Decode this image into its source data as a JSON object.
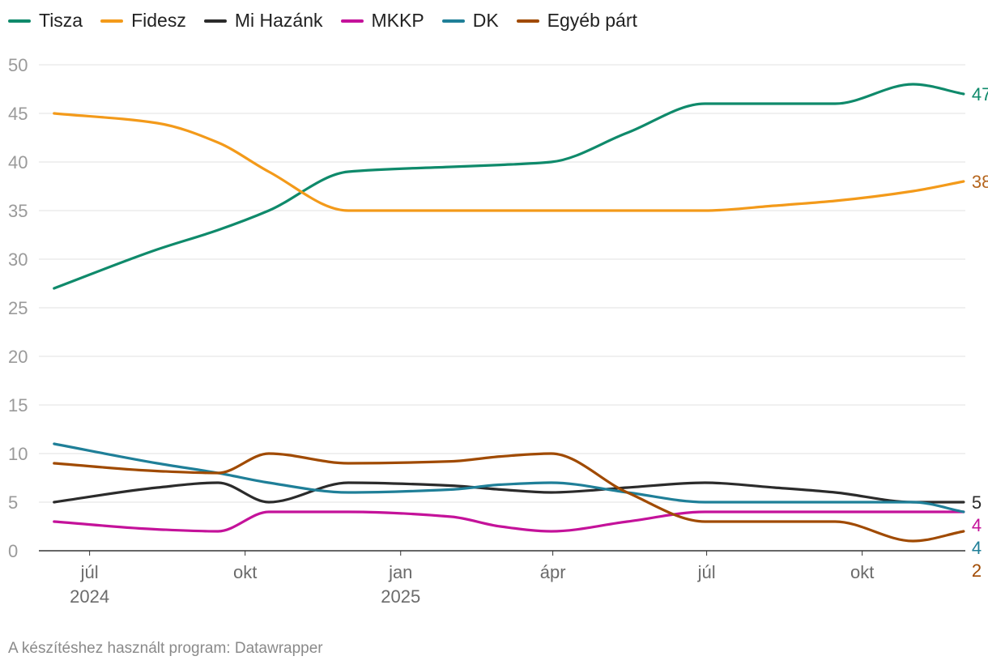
{
  "footer": "A készítéshez használt program: Datawrapper",
  "chart_data": {
    "type": "line",
    "legend_position": "top-left",
    "grid": true,
    "ylim": [
      0,
      50
    ],
    "yticks": [
      0,
      5,
      10,
      15,
      20,
      25,
      30,
      35,
      40,
      45,
      50
    ],
    "xlim": [
      "2024-06-01",
      "2025-12-01"
    ],
    "xticks": [
      {
        "date": "2024-07-01",
        "label": "júl",
        "year": "2024"
      },
      {
        "date": "2024-10-01",
        "label": "okt",
        "year": ""
      },
      {
        "date": "2025-01-01",
        "label": "jan",
        "year": "2025"
      },
      {
        "date": "2025-04-01",
        "label": "ápr",
        "year": ""
      },
      {
        "date": "2025-07-01",
        "label": "júl",
        "year": ""
      },
      {
        "date": "2025-10-01",
        "label": "okt",
        "year": ""
      }
    ],
    "x": [
      "2024-06-10",
      "2024-08-10",
      "2024-09-15",
      "2024-10-15",
      "2024-12-01",
      "2025-01-31",
      "2025-03-01",
      "2025-03-31",
      "2025-05-15",
      "2025-06-30",
      "2025-08-10",
      "2025-09-15",
      "2025-10-31",
      "2025-11-30"
    ],
    "series": [
      {
        "name": "Tisza",
        "color": "#0f8a6b",
        "end_label": "47",
        "end_label_color": "#0f8a6b",
        "values": [
          27,
          31,
          33,
          35,
          39,
          39.5,
          39.7,
          40,
          43,
          46,
          46,
          46,
          48,
          47
        ]
      },
      {
        "name": "Fidesz",
        "color": "#f39a1a",
        "end_label": "38",
        "end_label_color": "#b5651d",
        "values": [
          45,
          44,
          42,
          39,
          35,
          35,
          35,
          35,
          35,
          35,
          35.5,
          36,
          37,
          38
        ]
      },
      {
        "name": "Mi Hazánk",
        "color": "#2b2b2b",
        "end_label": "5",
        "end_label_color": "#2b2b2b",
        "values": [
          5,
          6.5,
          7,
          5,
          7,
          6.7,
          6.3,
          6,
          6.5,
          7,
          6.5,
          6,
          5,
          5
        ]
      },
      {
        "name": "MKKP",
        "color": "#c4129a",
        "end_label": "4",
        "end_label_color": "#c4129a",
        "values": [
          3,
          2.2,
          2,
          4,
          4,
          3.5,
          2.5,
          2,
          3,
          4,
          4,
          4,
          4,
          4
        ]
      },
      {
        "name": "DK",
        "color": "#1f7f98",
        "end_label": "4",
        "end_label_color": "#1f7f98",
        "values": [
          11,
          9,
          8,
          7,
          6,
          6.3,
          6.8,
          7,
          6,
          5,
          5,
          5,
          5,
          4
        ]
      },
      {
        "name": "Egyéb párt",
        "color": "#a04a00",
        "end_label": "2",
        "end_label_color": "#a04a00",
        "values": [
          9,
          8.2,
          8,
          10,
          9,
          9.2,
          9.7,
          10,
          6,
          3,
          3,
          3,
          1,
          2
        ]
      }
    ]
  }
}
